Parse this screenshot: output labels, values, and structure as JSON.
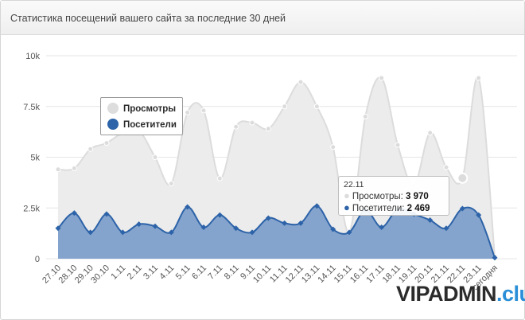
{
  "panel": {
    "title": "Статистика посещений вашего сайта за последние 30 дней"
  },
  "legend": {
    "items": [
      {
        "label": "Просмотры",
        "color": "#dddddd"
      },
      {
        "label": "Посетители",
        "color": "#2d63a8"
      }
    ]
  },
  "tooltip": {
    "title": "22.11",
    "rows": [
      {
        "label": "Просмотры:",
        "value": "3 970",
        "color": "#dddddd"
      },
      {
        "label": "Посетители:",
        "value": "2 469",
        "color": "#2d63a8"
      }
    ]
  },
  "watermark": {
    "main": "VIPADMIN",
    "sep": ".",
    "suffix": "club"
  },
  "chart_data": {
    "type": "area",
    "title": "",
    "xlabel": "",
    "ylabel": "",
    "ylim": [
      0,
      10000
    ],
    "y_ticks": [
      "0",
      "2.5k",
      "5k",
      "7.5k",
      "10k"
    ],
    "grid": true,
    "legend_position": "top-left",
    "categories": [
      "27.10",
      "28.10",
      "29.10",
      "30.10",
      "1.11",
      "2.11",
      "3.11",
      "4.11",
      "5.11",
      "6.11",
      "7.11",
      "8.11",
      "9.11",
      "10.11",
      "11.11",
      "12.11",
      "13.11",
      "14.11",
      "15.11",
      "16.11",
      "17.11",
      "18.11",
      "19.11",
      "20.11",
      "21.11",
      "22.11",
      "23.11",
      "сегодня"
    ],
    "series": [
      {
        "name": "Просмотры",
        "color": "#dddddd",
        "values": [
          4400,
          4450,
          5400,
          5700,
          6200,
          6300,
          5000,
          3700,
          7200,
          7300,
          3950,
          6500,
          6700,
          6400,
          7500,
          8700,
          7500,
          5500,
          1300,
          7000,
          8900,
          5600,
          3600,
          6200,
          4500,
          3970,
          8900,
          100
        ]
      },
      {
        "name": "Посетители",
        "color": "#2d63a8",
        "values": [
          1500,
          2250,
          1300,
          2200,
          1300,
          1700,
          1600,
          1300,
          2550,
          1550,
          2150,
          1500,
          1300,
          2000,
          1750,
          1750,
          2600,
          1450,
          1300,
          2400,
          1550,
          2450,
          2200,
          1900,
          1500,
          2469,
          2150,
          50
        ]
      }
    ]
  }
}
